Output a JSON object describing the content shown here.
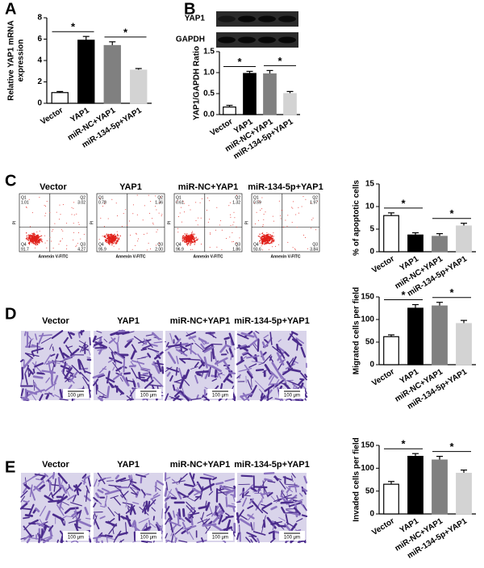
{
  "panel_labels": [
    "A",
    "B",
    "C",
    "D",
    "E"
  ],
  "blot": {
    "labels": [
      "YAP1",
      "GAPDH"
    ]
  },
  "flow": {
    "y_label": "PI",
    "x_label": "Annexin V-FITC",
    "quadrants": [
      "Q1",
      "Q2",
      "Q3",
      "Q4"
    ],
    "plots": [
      {
        "title": "Vector",
        "values": [
          "1.01",
          "3.02",
          "4.27",
          "91.7"
        ]
      },
      {
        "title": "YAP1",
        "values": [
          "0.78",
          "1.36",
          "2.00",
          "95.9"
        ]
      },
      {
        "title": "miR-NC+YAP1",
        "values": [
          "0.61",
          "1.32",
          "1.86",
          "96.9"
        ]
      },
      {
        "title": "miR-134-5p+YAP1",
        "values": [
          "0.59",
          "1.97",
          "3.84",
          "93.6"
        ]
      }
    ]
  },
  "migration": {
    "titles": [
      "Vector",
      "YAP1",
      "miR-NC+YAP1",
      "miR-134-5p+YAP1"
    ],
    "scale_bar": "100 μm"
  },
  "invasion": {
    "titles": [
      "Vector",
      "YAP1",
      "miR-NC+YAP1",
      "miR-134-5p+YAP1"
    ],
    "scale_bar": "100 μm"
  },
  "chart_data": [
    {
      "type": "bar",
      "ylabel": [
        "Relative YAP1 mRNA",
        "expression"
      ],
      "categories": [
        "Vector",
        "YAP1",
        "miR-NC+YAP1",
        "miR-134-5p+YAP1"
      ],
      "values": [
        1.0,
        5.9,
        5.4,
        3.1
      ],
      "errors": [
        0.1,
        0.35,
        0.35,
        0.15
      ],
      "colors": [
        "#ffffff",
        "#000000",
        "#808080",
        "#d3d3d3"
      ],
      "annotations": [
        "*",
        "*"
      ],
      "ylim": [
        0,
        8
      ],
      "yticks": [
        0,
        2,
        4,
        6,
        8
      ]
    },
    {
      "type": "bar",
      "ylabel": [
        "YAP1/GAPDH Ratio"
      ],
      "categories": [
        "Vector",
        "YAP1",
        "miR-NC+YAP1",
        "miR-134-5p+YAP1"
      ],
      "values": [
        0.18,
        0.98,
        0.97,
        0.5
      ],
      "errors": [
        0.04,
        0.05,
        0.08,
        0.05
      ],
      "colors": [
        "#ffffff",
        "#000000",
        "#808080",
        "#d3d3d3"
      ],
      "annotations": [
        "*",
        "*"
      ],
      "ylim": [
        0,
        1.5
      ],
      "yticks": [
        {
          "value": 0,
          "label": "0.0"
        },
        {
          "value": 0.5,
          "label": "0.5"
        },
        {
          "value": 1,
          "label": "1.0"
        },
        {
          "value": 1.5,
          "label": "1.5"
        }
      ]
    },
    {
      "type": "bar",
      "ylabel": [
        "% of apoptotic cells"
      ],
      "categories": [
        "Vector",
        "YAP1",
        "miR-NC+YAP1",
        "miR-134-5p+YAP1"
      ],
      "values": [
        8.0,
        3.7,
        3.4,
        5.7
      ],
      "errors": [
        0.6,
        0.5,
        0.6,
        0.6
      ],
      "colors": [
        "#ffffff",
        "#000000",
        "#808080",
        "#d3d3d3"
      ],
      "annotations": [
        "*",
        "*"
      ],
      "ylim": [
        0,
        15
      ],
      "yticks": [
        0,
        5,
        10,
        15
      ]
    },
    {
      "type": "bar",
      "ylabel": [
        "Migrated cells per field"
      ],
      "categories": [
        "Vector",
        "YAP1",
        "miR-NC+YAP1",
        "miR-134-5p+YAP1"
      ],
      "values": [
        62,
        125,
        130,
        91
      ],
      "errors": [
        4,
        8,
        8,
        7
      ],
      "colors": [
        "#ffffff",
        "#000000",
        "#808080",
        "#d3d3d3"
      ],
      "annotations": [
        "*",
        "*"
      ],
      "ylim": [
        0,
        150
      ],
      "yticks": [
        0,
        50,
        100,
        150
      ]
    },
    {
      "type": "bar",
      "ylabel": [
        "Invaded cells per field"
      ],
      "categories": [
        "Vector",
        "YAP1",
        "miR-NC+YAP1",
        "miR-134-5p+YAP1"
      ],
      "values": [
        65,
        126,
        118,
        89
      ],
      "errors": [
        6,
        6,
        8,
        7
      ],
      "colors": [
        "#ffffff",
        "#000000",
        "#808080",
        "#d3d3d3"
      ],
      "annotations": [
        "*",
        "*"
      ],
      "ylim": [
        0,
        150
      ],
      "yticks": [
        0,
        50,
        100,
        150
      ]
    }
  ]
}
